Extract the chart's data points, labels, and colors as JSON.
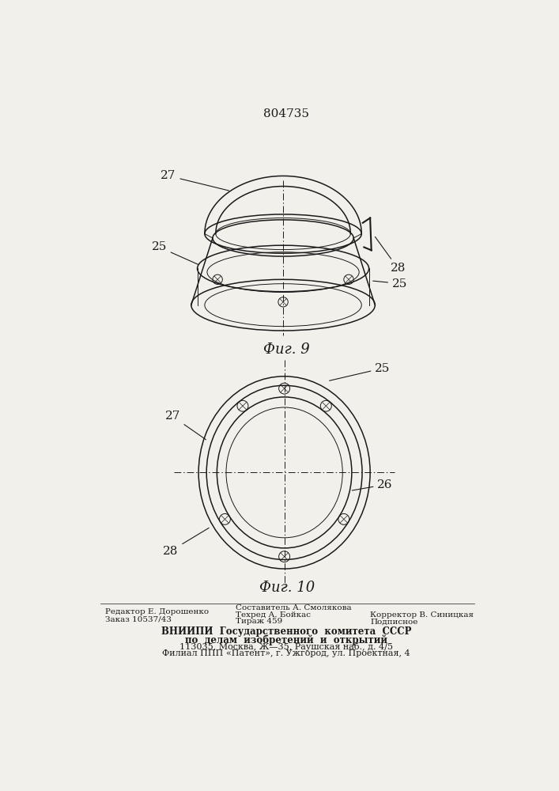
{
  "patent_number": "804735",
  "fig9_label": "Фиг. 9",
  "fig10_label": "Фиг. 10",
  "bg_color": "#f2f0eb",
  "line_color": "#1a1a1a",
  "footer_col1_line1": "Редактор Е. Дорошенко",
  "footer_col1_line2": "Заказ 10537/43",
  "footer_col2_line1": "Составитель А. Смолякова",
  "footer_col2_line2": "Техред А. Бойкас",
  "footer_col2_line3": "Тираж 459",
  "footer_col3_line2": "Корректор В. Синицкая",
  "footer_col3_line3": "Подписное",
  "footer_vniipи": "ВНИИПИ  Государственного  комитета  СССР",
  "footer_po_delam": "по  делам  изобретений  и  открытий",
  "footer_addr1": "113035, Москва, Ж—35, Раушская наб., д. 4/5",
  "footer_addr2": "Филиал ППП «Патент», г. Ужгород, ул. Проектная, 4"
}
